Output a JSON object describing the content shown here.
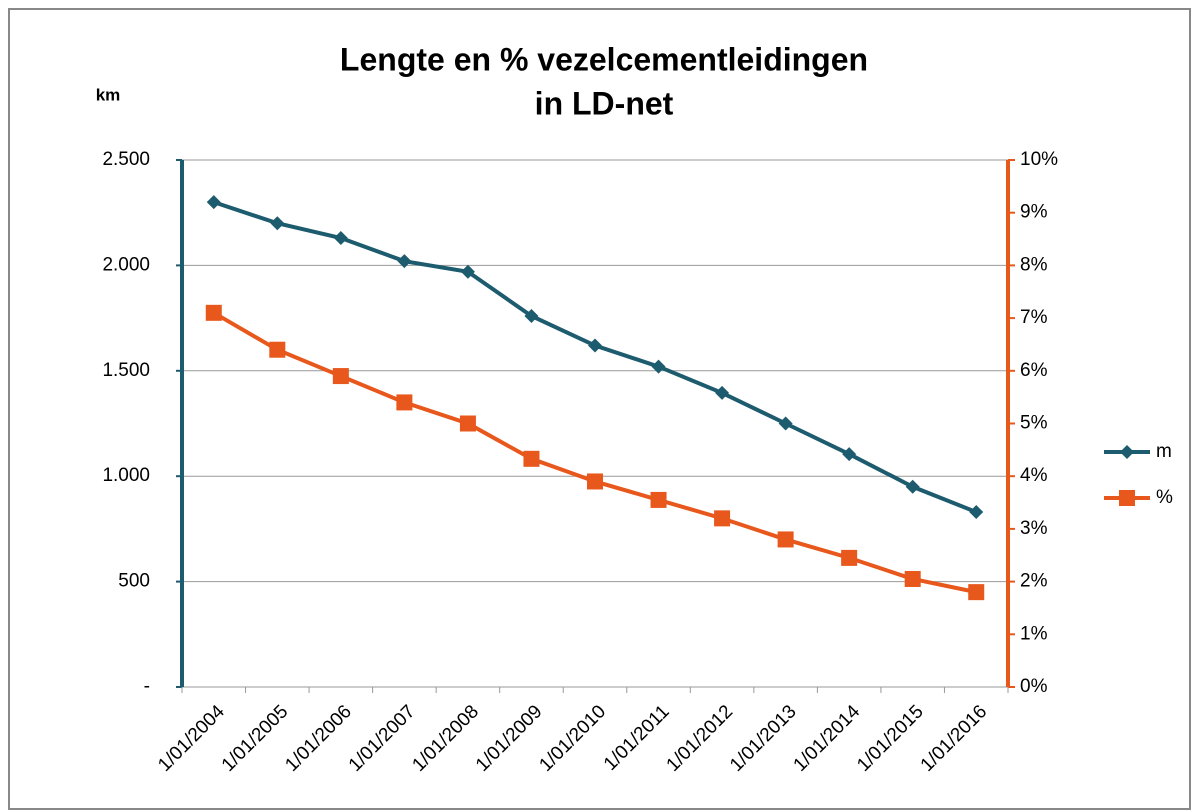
{
  "chart_data": {
    "type": "line",
    "title": [
      "Lengte en % vezelcementleidingen",
      "in LD-net"
    ],
    "y_label": "km",
    "categories": [
      "1/01/2004",
      "1/01/2005",
      "1/01/2006",
      "1/01/2007",
      "1/01/2008",
      "1/01/2009",
      "1/01/2010",
      "1/01/2011",
      "1/01/2012",
      "1/01/2013",
      "1/01/2014",
      "1/01/2015",
      "1/01/2016"
    ],
    "series": [
      {
        "name": "m",
        "color": "#1d5b6e",
        "marker": "diamond",
        "values": [
          2300,
          2200,
          2130,
          2020,
          1970,
          1760,
          1620,
          1520,
          1395,
          1250,
          1105,
          950,
          830
        ]
      },
      {
        "name": "%",
        "color": "#e8571b",
        "marker": "square",
        "axis": "y2",
        "values": [
          7.1,
          6.4,
          5.9,
          5.4,
          5.0,
          4.33,
          3.9,
          3.55,
          3.2,
          2.8,
          2.45,
          2.05,
          1.8
        ]
      }
    ],
    "ylim": [
      0,
      2500
    ],
    "yticks": [
      {
        "value": 0,
        "label": "-"
      },
      500,
      {
        "value": 1000,
        "label": "1.000"
      },
      {
        "value": 1500,
        "label": "1.500"
      },
      {
        "value": 2000,
        "label": "2.000"
      },
      {
        "value": 2500,
        "label": "2.500"
      }
    ],
    "y2lim": [
      0,
      10
    ],
    "y2ticks": [
      {
        "value": 0,
        "label": "0%"
      },
      {
        "value": 1,
        "label": "1%"
      },
      {
        "value": 2,
        "label": "2%"
      },
      {
        "value": 3,
        "label": "3%"
      },
      {
        "value": 4,
        "label": "4%"
      },
      {
        "value": 5,
        "label": "5%"
      },
      {
        "value": 6,
        "label": "6%"
      },
      {
        "value": 7,
        "label": "7%"
      },
      {
        "value": 8,
        "label": "8%"
      },
      {
        "value": 9,
        "label": "9%"
      },
      {
        "value": 10,
        "label": "10%"
      }
    ],
    "grid": true,
    "legend": "right"
  }
}
